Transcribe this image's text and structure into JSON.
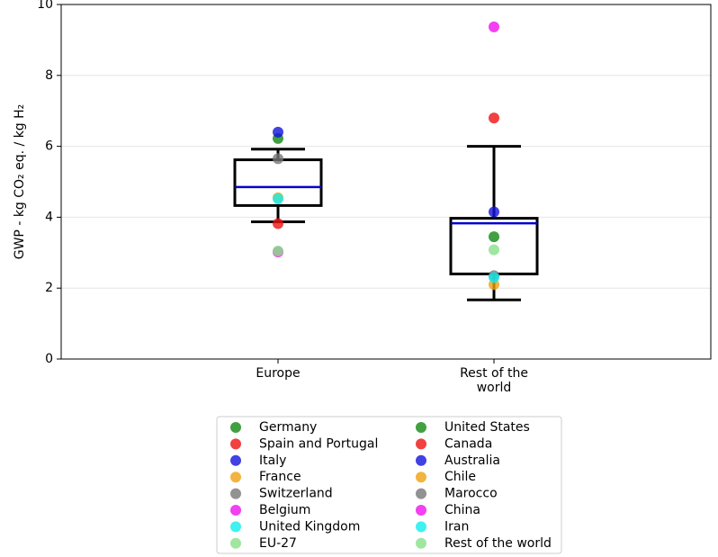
{
  "chart_data": {
    "type": "box_scatter",
    "y_label": "GWP - kg CO₂ eq. / kg H₂",
    "categories": [
      "Europe",
      "Rest of the world"
    ],
    "ylim": [
      0,
      10
    ],
    "yticks": [
      0,
      2,
      4,
      6,
      8,
      10
    ],
    "grid": true,
    "boxes": [
      {
        "whislo": 3.87,
        "q1": 4.33,
        "med": 4.85,
        "q3": 5.62,
        "whishi": 5.92
      },
      {
        "whislo": 1.67,
        "q1": 2.4,
        "med": 3.83,
        "q3": 3.97,
        "whishi": 6.0
      }
    ],
    "box_color": "#000000",
    "median_color": "#0000cc",
    "series": [
      {
        "name": "Germany",
        "color": "#118811",
        "values": [
          6.22,
          null
        ]
      },
      {
        "name": "Spain and Portugal",
        "color": "#ee1111",
        "values": [
          3.82,
          null
        ]
      },
      {
        "name": "Italy",
        "color": "#1111dd",
        "values": [
          6.4,
          null
        ]
      },
      {
        "name": "France",
        "color": "#f0a010",
        "values": [
          4.55,
          null
        ]
      },
      {
        "name": "Switzerland",
        "color": "#777777",
        "values": [
          5.65,
          null
        ]
      },
      {
        "name": "Belgium",
        "color": "#ee11ee",
        "values": [
          3.02,
          null
        ]
      },
      {
        "name": "United Kingdom",
        "color": "#11eeee",
        "values": [
          4.52,
          null
        ]
      },
      {
        "name": "EU-27",
        "color": "#88e088",
        "values": [
          3.05,
          null
        ]
      },
      {
        "name": "United States",
        "color": "#118811",
        "values": [
          null,
          3.45
        ]
      },
      {
        "name": "Canada",
        "color": "#ee1111",
        "values": [
          null,
          6.8
        ]
      },
      {
        "name": "Australia",
        "color": "#1111dd",
        "values": [
          null,
          4.15
        ]
      },
      {
        "name": "Chile",
        "color": "#f0a010",
        "values": [
          null,
          2.1
        ]
      },
      {
        "name": "Marocco",
        "color": "#777777",
        "values": [
          null,
          2.35
        ]
      },
      {
        "name": "China",
        "color": "#ee11ee",
        "values": [
          null,
          9.37
        ]
      },
      {
        "name": "Iran",
        "color": "#11eeee",
        "values": [
          null,
          2.3
        ]
      },
      {
        "name": "Rest of the world",
        "color": "#88e088",
        "values": [
          null,
          3.08
        ]
      }
    ]
  }
}
